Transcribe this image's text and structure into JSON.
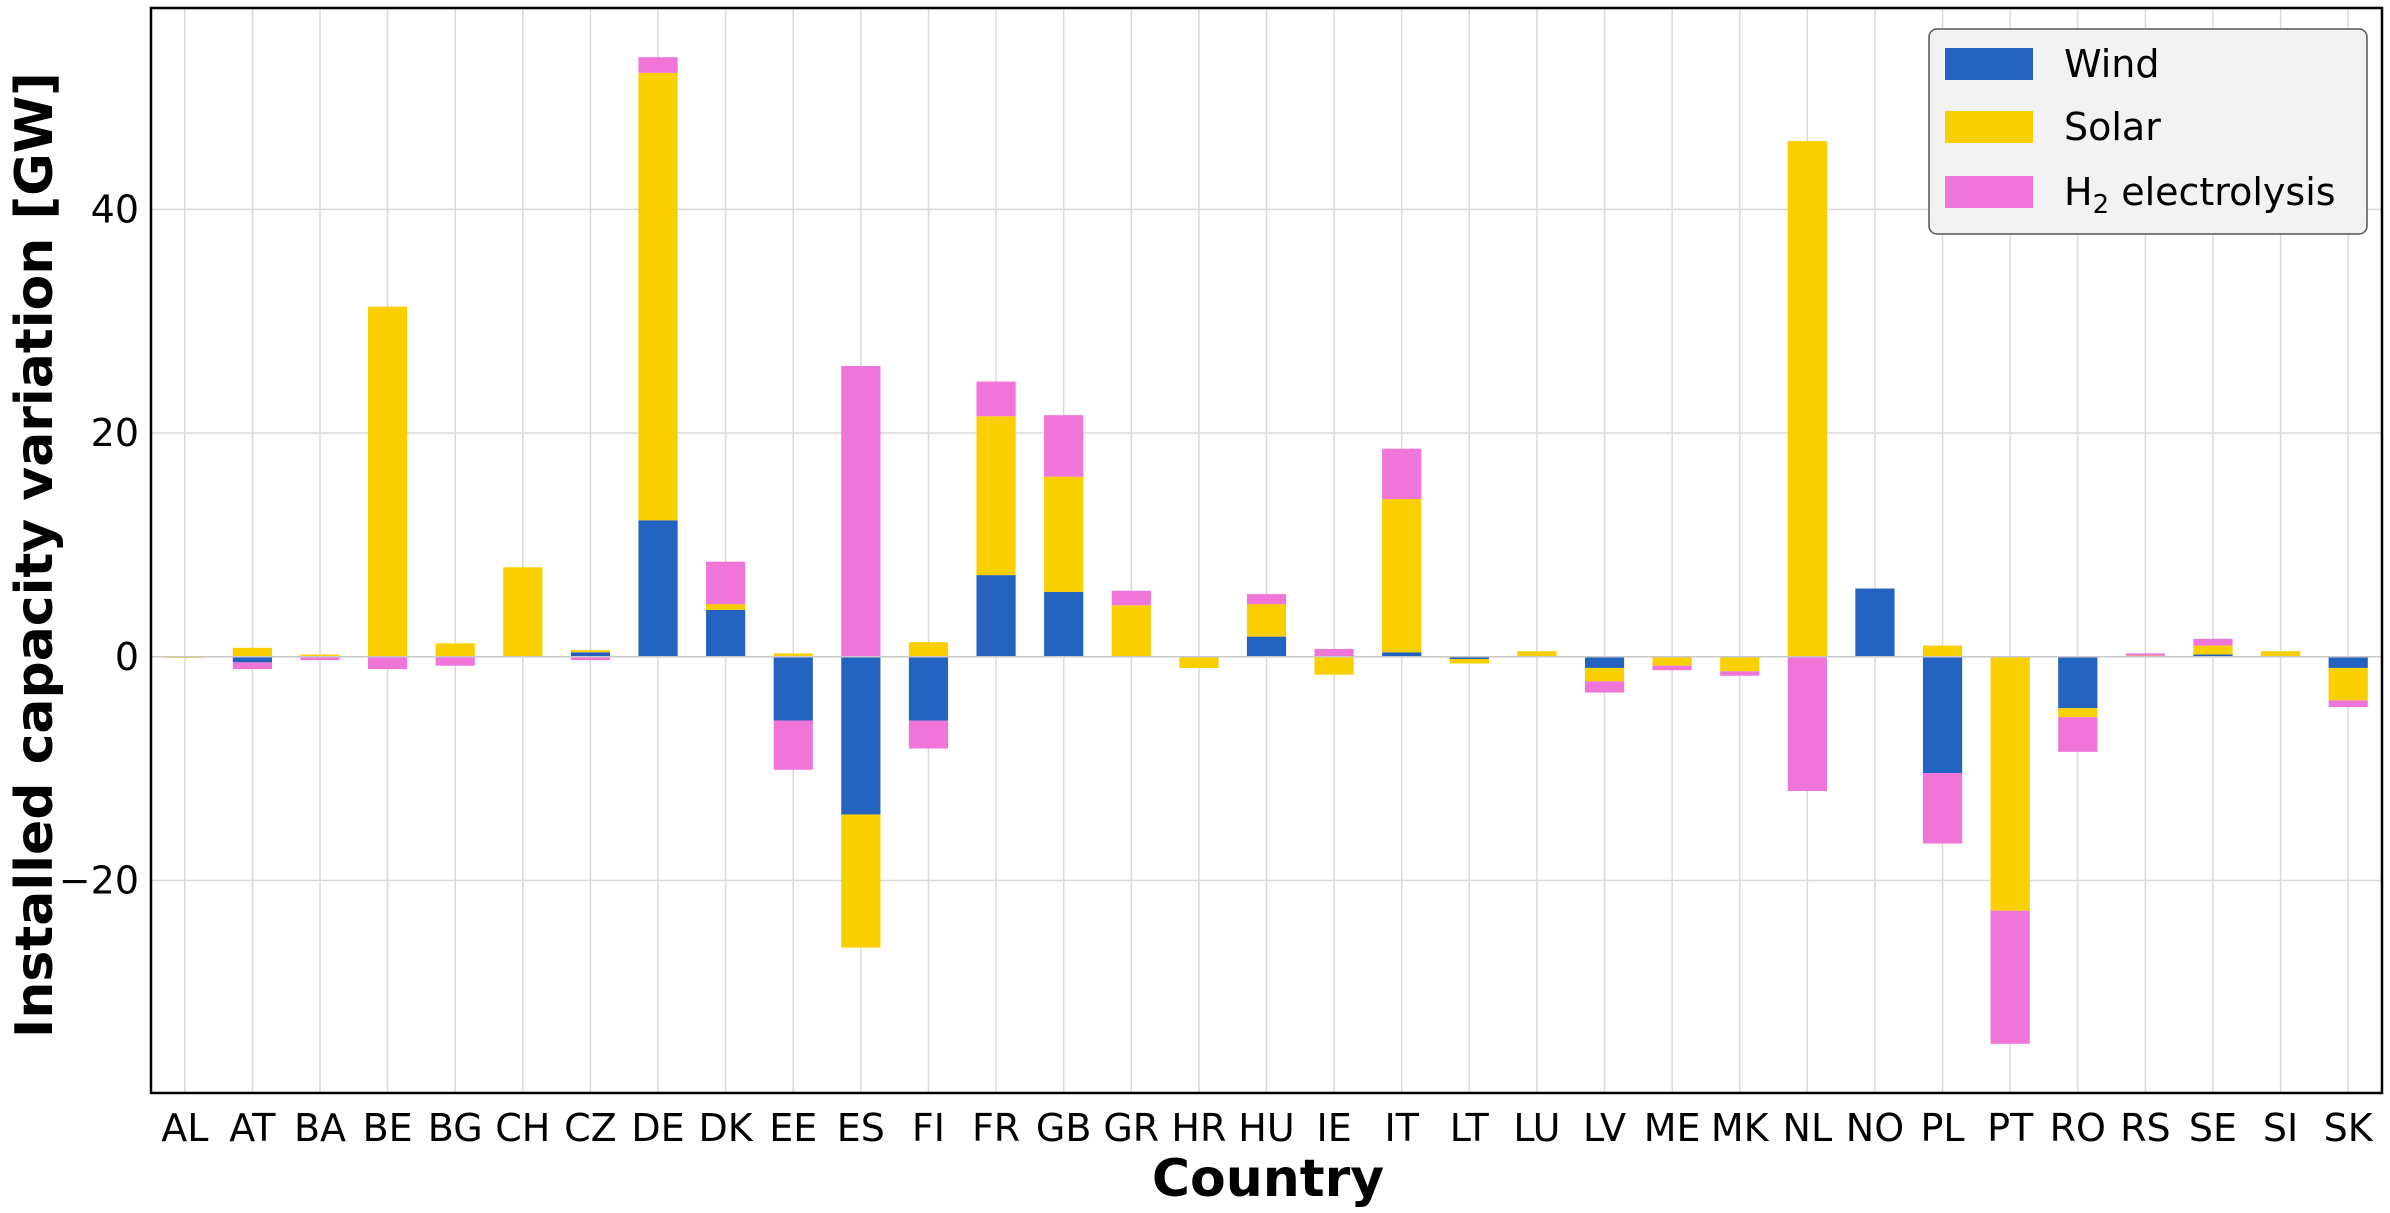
{
  "chart_data": {
    "type": "bar",
    "stacked": true,
    "xlabel": "Country",
    "ylabel": "Installed capacity variation [GW]",
    "ylim": [
      -39,
      58
    ],
    "yticks": [
      -20,
      0,
      20,
      40
    ],
    "ytick_labels": [
      "−20",
      "0",
      "20",
      "40"
    ],
    "grid": true,
    "legend_position": "top-right",
    "categories": [
      "AL",
      "AT",
      "BA",
      "BE",
      "BG",
      "CH",
      "CZ",
      "DE",
      "DK",
      "EE",
      "ES",
      "FI",
      "FR",
      "GB",
      "GR",
      "HR",
      "HU",
      "IE",
      "IT",
      "LT",
      "LU",
      "LV",
      "ME",
      "MK",
      "NL",
      "NO",
      "PL",
      "PT",
      "RO",
      "RS",
      "SE",
      "SI",
      "SK"
    ],
    "series": [
      {
        "name": "Wind",
        "color": "#2462c0",
        "values": [
          0,
          -0.5,
          0,
          0,
          0,
          0,
          0.4,
          12.2,
          4.2,
          -5.7,
          -14.1,
          -5.7,
          7.3,
          5.8,
          0,
          0,
          1.8,
          0,
          0.4,
          -0.2,
          0,
          -1.0,
          0,
          0,
          0,
          6.1,
          -10.4,
          0,
          -4.6,
          0,
          0.2,
          0,
          -1.0
        ]
      },
      {
        "name": "Solar",
        "color": "#f9cf00",
        "values": [
          -0.1,
          0.8,
          0.2,
          31.3,
          1.2,
          8.0,
          0.2,
          40.0,
          0.5,
          0.3,
          -11.9,
          1.3,
          14.2,
          10.3,
          4.6,
          -1.0,
          2.9,
          -1.6,
          13.7,
          -0.4,
          0.5,
          -1.2,
          -0.8,
          -1.3,
          46.1,
          0,
          1.0,
          -22.7,
          -0.8,
          0.1,
          0.8,
          0.5,
          -2.9
        ]
      },
      {
        "name": "H2 electrolysis",
        "color": "#f075d8",
        "label_main": "H",
        "label_sub": "2",
        "label_rest": " electrolysis",
        "values": [
          0,
          -0.6,
          -0.3,
          -1.1,
          -0.8,
          0,
          -0.3,
          1.4,
          3.8,
          -4.4,
          26.0,
          -2.5,
          3.1,
          5.5,
          1.3,
          0,
          0.9,
          0.7,
          4.5,
          0,
          0,
          -1.0,
          -0.4,
          -0.4,
          -12.0,
          0,
          -6.3,
          -11.9,
          -3.1,
          0.2,
          0.6,
          0,
          -0.6
        ]
      }
    ]
  }
}
